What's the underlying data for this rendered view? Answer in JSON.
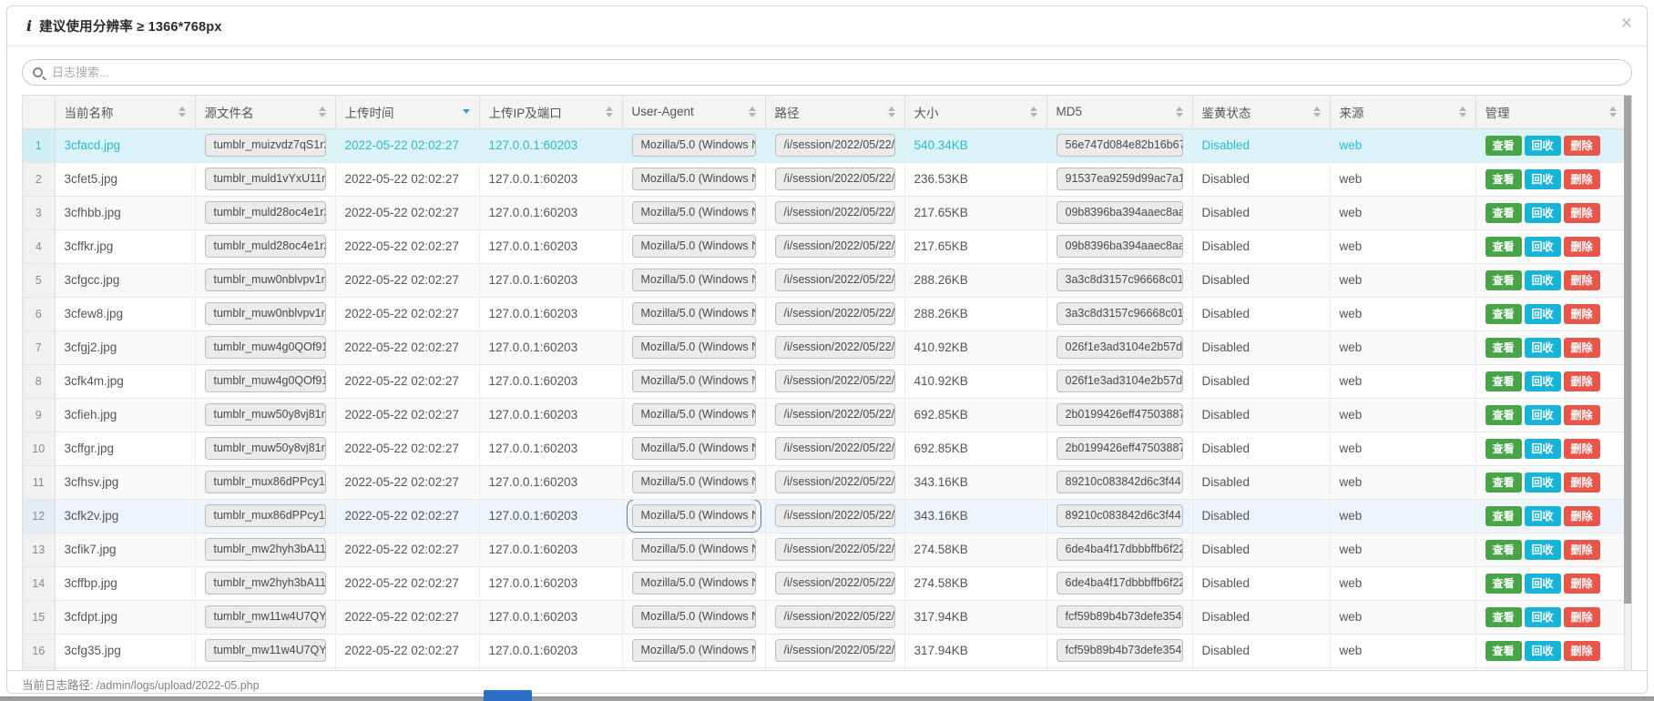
{
  "notice": {
    "icon_glyph": "i",
    "text": "建议使用分辨率 ≥ 1366*768px",
    "close_glyph": "×"
  },
  "search": {
    "placeholder": "日志搜索..."
  },
  "table": {
    "columns": [
      {
        "key": "name",
        "label": "当前名称",
        "sort": "both"
      },
      {
        "key": "source",
        "label": "源文件名",
        "sort": "both"
      },
      {
        "key": "time",
        "label": "上传时间",
        "sort": "desc"
      },
      {
        "key": "ip",
        "label": "上传IP及端口",
        "sort": "both"
      },
      {
        "key": "ua",
        "label": "User-Agent",
        "sort": "both"
      },
      {
        "key": "path",
        "label": "路径",
        "sort": "both"
      },
      {
        "key": "size",
        "label": "大小",
        "sort": "both"
      },
      {
        "key": "md5",
        "label": "MD5",
        "sort": "both"
      },
      {
        "key": "status",
        "label": "鉴黄状态",
        "sort": "both"
      },
      {
        "key": "origin",
        "label": "来源",
        "sort": "both"
      },
      {
        "key": "manage",
        "label": "管理",
        "sort": "both"
      }
    ],
    "actions": {
      "view": "查看",
      "recycle": "回收",
      "delete": "删除"
    },
    "shared": {
      "time": "2022-05-22 02:02:27",
      "ip": "127.0.0.1:60203",
      "ua": "Mozilla/5.0 (Windows N",
      "path": "/i/session/2022/05/22/3",
      "status": "Disabled",
      "origin": "web"
    },
    "rows": [
      {
        "index": "1",
        "name": "3cfacd.jpg",
        "source": "tumblr_muizvdz7qS1r2",
        "size": "540.34KB",
        "md5": "56e747d084e82b16b67",
        "selected": true
      },
      {
        "index": "2",
        "name": "3cfet5.jpg",
        "source": "tumblr_muld1vYxU11r2",
        "size": "236.53KB",
        "md5": "91537ea9259d99ac7a1"
      },
      {
        "index": "3",
        "name": "3cfhbb.jpg",
        "source": "tumblr_muld28oc4e1r2",
        "size": "217.65KB",
        "md5": "09b8396ba394aaec8aa"
      },
      {
        "index": "4",
        "name": "3cffkr.jpg",
        "source": "tumblr_muld28oc4e1r2",
        "size": "217.65KB",
        "md5": "09b8396ba394aaec8aa"
      },
      {
        "index": "5",
        "name": "3cfgcc.jpg",
        "source": "tumblr_muw0nblvpv1r2",
        "size": "288.26KB",
        "md5": "3a3c8d3157c96668c01"
      },
      {
        "index": "6",
        "name": "3cfew8.jpg",
        "source": "tumblr_muw0nblvpv1r2",
        "size": "288.26KB",
        "md5": "3a3c8d3157c96668c01"
      },
      {
        "index": "7",
        "name": "3cfgj2.jpg",
        "source": "tumblr_muw4g0QOf91r",
        "size": "410.92KB",
        "md5": "026f1e3ad3104e2b57d"
      },
      {
        "index": "8",
        "name": "3cfk4m.jpg",
        "source": "tumblr_muw4g0QOf91r",
        "size": "410.92KB",
        "md5": "026f1e3ad3104e2b57d"
      },
      {
        "index": "9",
        "name": "3cfieh.jpg",
        "source": "tumblr_muw50y8vj81r2",
        "size": "692.85KB",
        "md5": "2b0199426eff47503887"
      },
      {
        "index": "10",
        "name": "3cffgr.jpg",
        "source": "tumblr_muw50y8vj81r2",
        "size": "692.85KB",
        "md5": "2b0199426eff47503887"
      },
      {
        "index": "11",
        "name": "3cfhsv.jpg",
        "source": "tumblr_mux86dPPcy1r2",
        "size": "343.16KB",
        "md5": "89210c083842d6c3f44"
      },
      {
        "index": "12",
        "name": "3cfk2v.jpg",
        "source": "tumblr_mux86dPPcy1r2",
        "size": "343.16KB",
        "md5": "89210c083842d6c3f44",
        "hover": true,
        "ua_focused": true
      },
      {
        "index": "13",
        "name": "3cfik7.jpg",
        "source": "tumblr_mw2hyh3bA11r",
        "size": "274.58KB",
        "md5": "6de4ba4f17dbbbffb6f22"
      },
      {
        "index": "14",
        "name": "3cffbp.jpg",
        "source": "tumblr_mw2hyh3bA11r",
        "size": "274.58KB",
        "md5": "6de4ba4f17dbbbffb6f22"
      },
      {
        "index": "15",
        "name": "3cfdpt.jpg",
        "source": "tumblr_mw11w4U7QY1",
        "size": "317.94KB",
        "md5": "fcf59b89b4b73defe354"
      },
      {
        "index": "16",
        "name": "3cfg35.jpg",
        "source": "tumblr_mw11w4U7QY1",
        "size": "317.94KB",
        "md5": "fcf59b89b4b73defe354"
      }
    ],
    "has_partial_row": true
  },
  "footer": {
    "path_label": "当前日志路径: /admin/logs/upload/2022-05.php"
  },
  "colors": {
    "accent_cyan": "#2bb8cd",
    "selected_row_bg": "#dbf3f8",
    "hover_row_bg": "#edf4fb",
    "sort_active": "#2ea6dc",
    "btn_view": "#47a447",
    "btn_recycle": "#17b3d9",
    "btn_delete": "#e8564a",
    "header_bg": "#f4f4f4"
  }
}
